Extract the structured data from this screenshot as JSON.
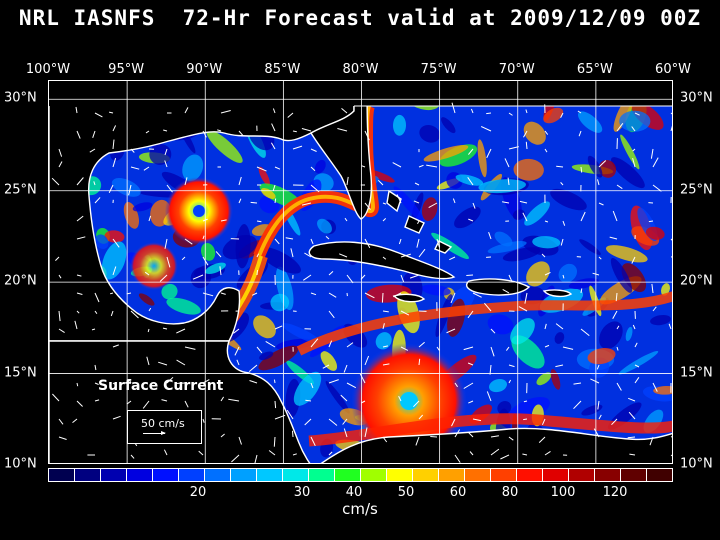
{
  "title": "NRL IASNFS  72-Hr Forecast valid at 2009/12/09 00Z",
  "lon_ticks": [
    "100°W",
    "95°W",
    "90°W",
    "85°W",
    "80°W",
    "75°W",
    "70°W",
    "65°W",
    "60°W"
  ],
  "lat_ticks": [
    "30°N",
    "25°N",
    "20°N",
    "15°N",
    "10°N"
  ],
  "legend": {
    "label": "Surface Current",
    "scale_text": "50 cm/s"
  },
  "colorbar": {
    "tick_labels": [
      "20",
      "30",
      "40",
      "50",
      "60",
      "80",
      "100",
      "120"
    ],
    "unit": "cm/s",
    "colors": [
      "#000050",
      "#000080",
      "#0000b0",
      "#0000e0",
      "#0010ff",
      "#0040ff",
      "#0070ff",
      "#00a0ff",
      "#00c8ff",
      "#00e8e8",
      "#00ff90",
      "#20ff20",
      "#a0ff00",
      "#ffff00",
      "#ffd000",
      "#ffa000",
      "#ff7000",
      "#ff4000",
      "#ff1000",
      "#e00000",
      "#b00000",
      "#880000",
      "#600000",
      "#400000"
    ]
  },
  "map": {
    "region": "Gulf of Mexico, Caribbean Sea and western Atlantic",
    "lon_range": [
      -100,
      -60
    ],
    "lat_range": [
      10,
      31
    ],
    "land_color": "#000000",
    "coastline_color": "#ffffff"
  }
}
